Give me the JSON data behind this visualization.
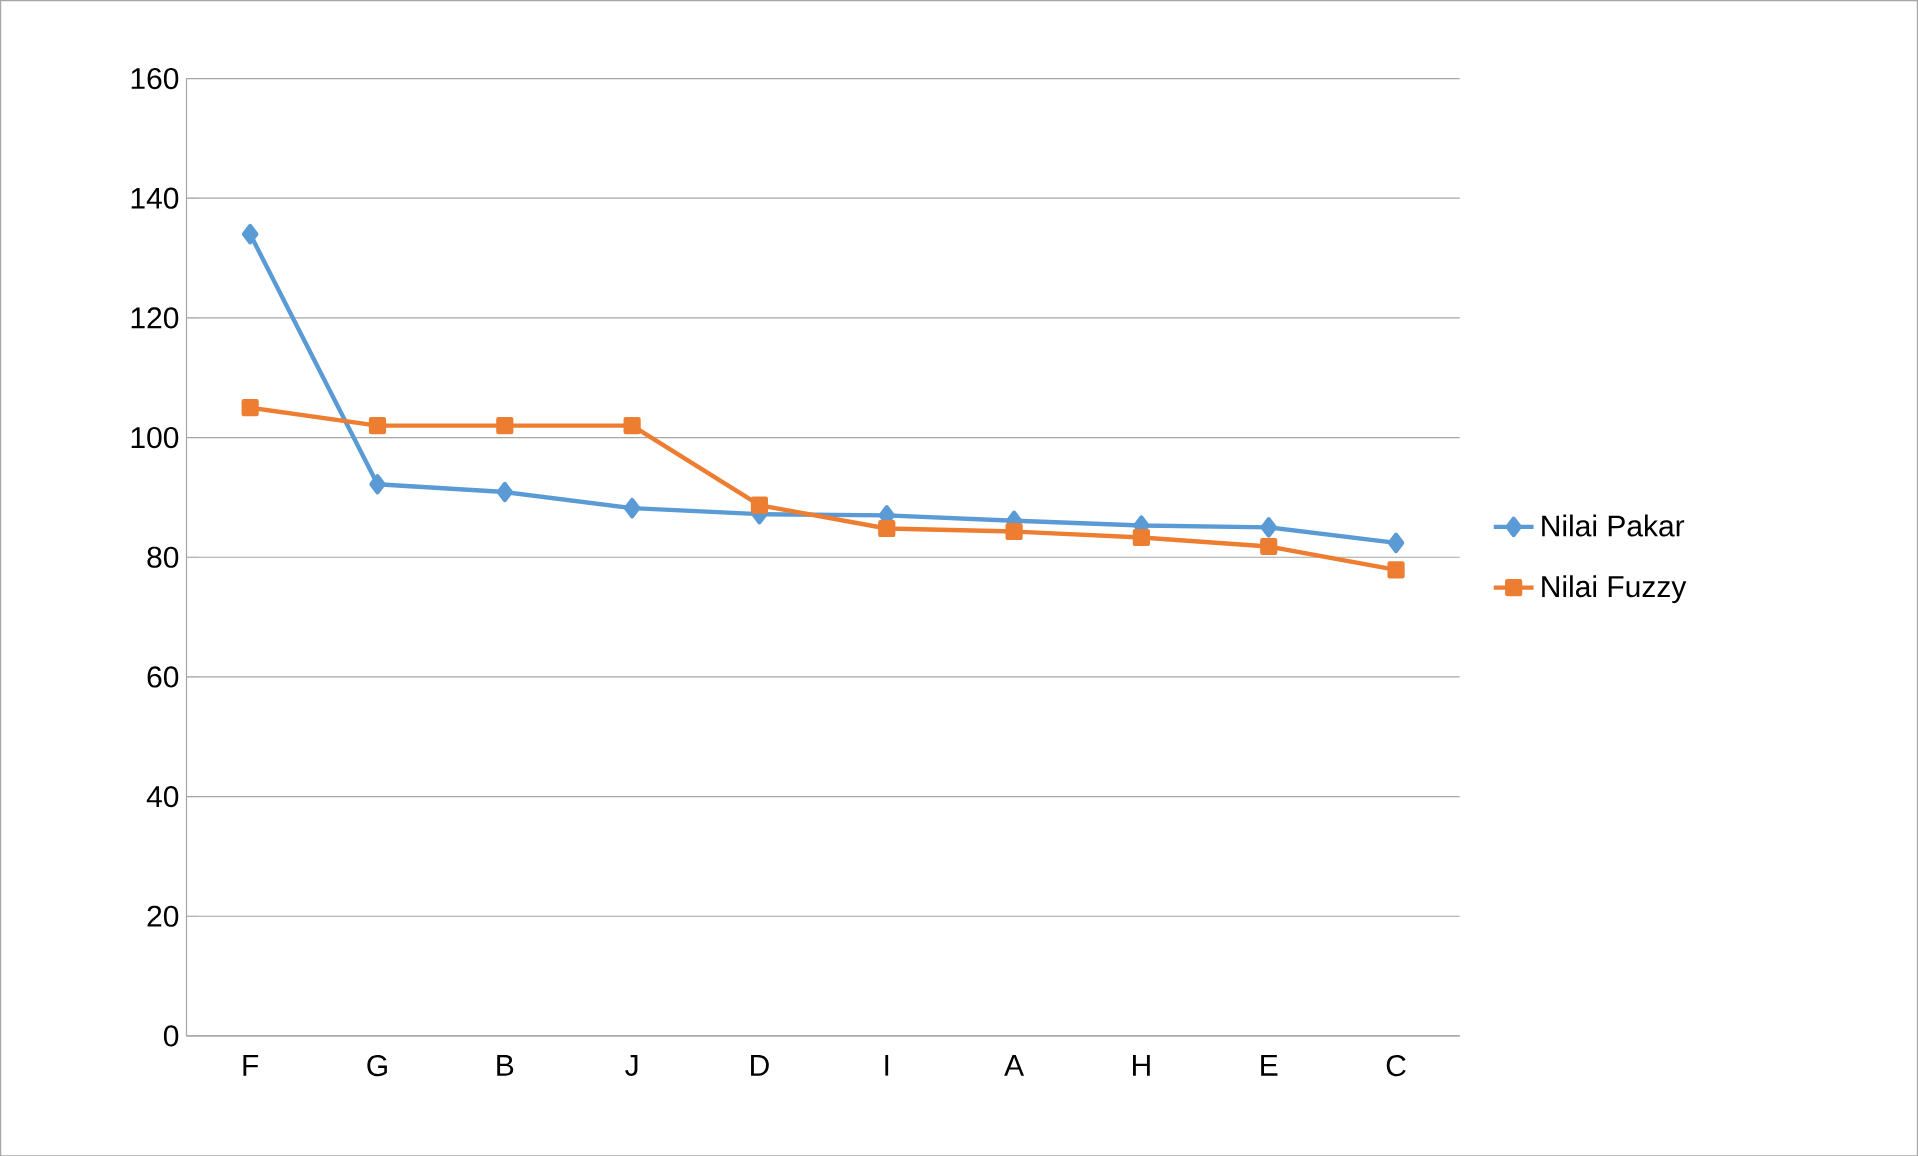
{
  "chart_data": {
    "type": "line",
    "categories": [
      "F",
      "G",
      "B",
      "J",
      "D",
      "I",
      "A",
      "H",
      "E",
      "C"
    ],
    "series": [
      {
        "name": "Nilai Pakar",
        "color": "#5b9bd5",
        "marker": "diamond",
        "values": [
          134,
          92.2,
          90.9,
          88.2,
          87.2,
          87,
          86.1,
          85.3,
          85,
          82.4
        ]
      },
      {
        "name": "Nilai Fuzzy",
        "color": "#ed7d31",
        "marker": "square",
        "values": [
          105,
          102,
          102,
          102,
          88.7,
          84.8,
          84.3,
          83.3,
          81.8,
          77.9
        ]
      }
    ],
    "ylim": [
      0,
      160
    ],
    "yticks": [
      0,
      20,
      40,
      60,
      80,
      100,
      120,
      140,
      160
    ],
    "grid": "y",
    "legend": "right"
  }
}
